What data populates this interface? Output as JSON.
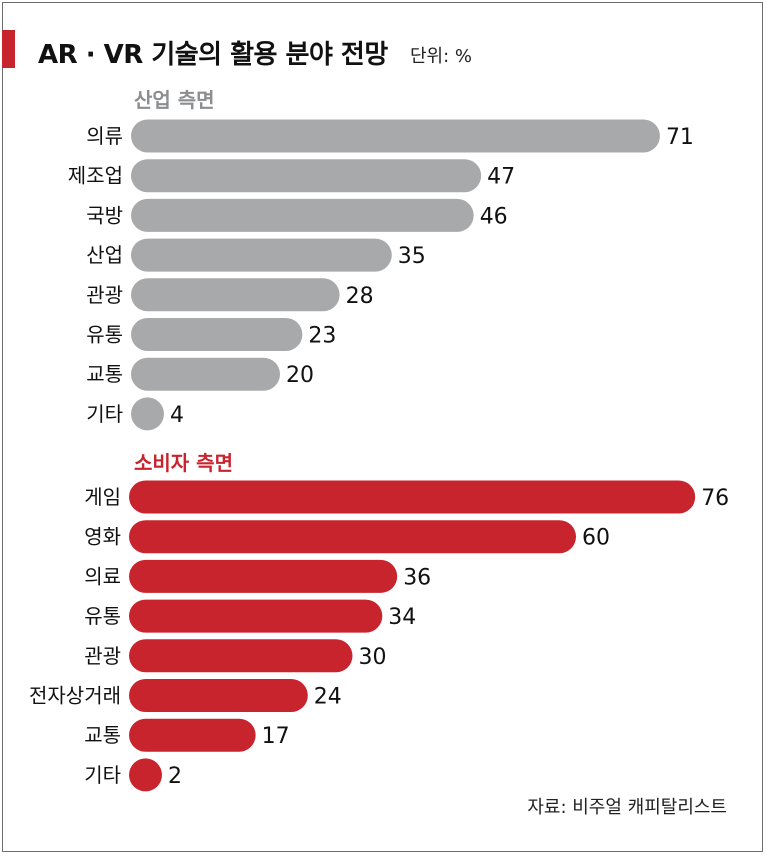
{
  "title": "AR · VR 기술의 활용 분야 전망",
  "unit": "단위: %",
  "source": "자료: 비주얼 캐피탈리스트",
  "colors": {
    "accent": "#c8242e",
    "industry": "#a8a9ab",
    "consumer": "#c8242e"
  },
  "chart_data": {
    "type": "bar",
    "orientation": "horizontal",
    "title": "AR · VR 기술의 활용 분야 전망",
    "unit": "%",
    "groups": [
      {
        "name": "산업 측면",
        "color": "#a8a9ab",
        "categories": [
          "의류",
          "제조업",
          "국방",
          "산업",
          "관광",
          "유통",
          "교통",
          "기타"
        ],
        "values": [
          71,
          47,
          46,
          35,
          28,
          23,
          20,
          4
        ]
      },
      {
        "name": "소비자 측면",
        "color": "#c8242e",
        "categories": [
          "게임",
          "영화",
          "의료",
          "유통",
          "관광",
          "전자상거래",
          "교통",
          "기타"
        ],
        "values": [
          76,
          60,
          36,
          34,
          30,
          24,
          17,
          2
        ]
      }
    ]
  }
}
